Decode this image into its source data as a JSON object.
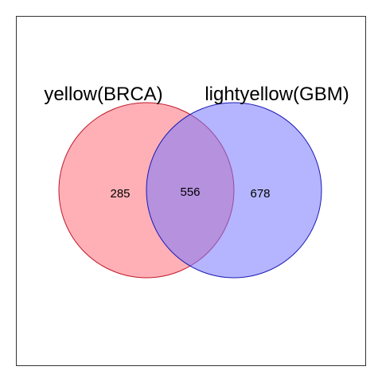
{
  "chart_data": {
    "type": "venn",
    "sets": [
      {
        "name": "yellow(BRCA)",
        "only": 285,
        "fill": "#ff6f7a",
        "stroke": "#c0182a"
      },
      {
        "name": "lightyellow(GBM)",
        "only": 678,
        "fill": "#7878ff",
        "stroke": "#1a1ab4"
      }
    ],
    "intersection": 556,
    "overlap_color": "#a97ec8",
    "frame_color": "#333333"
  }
}
